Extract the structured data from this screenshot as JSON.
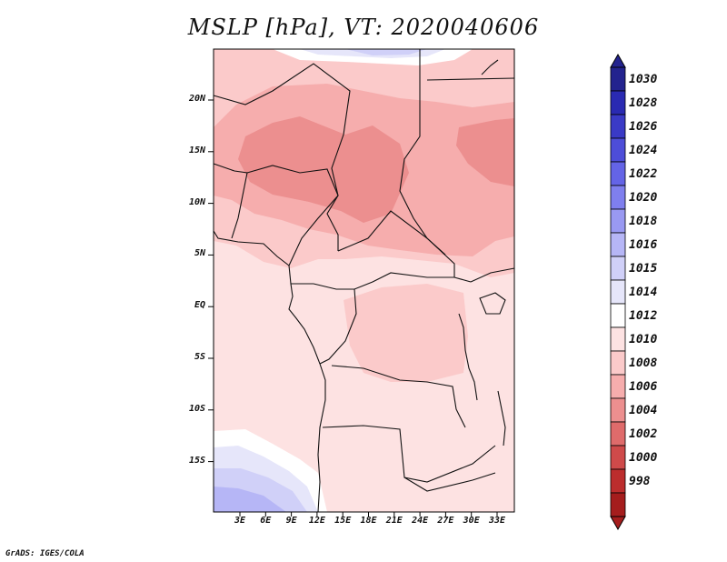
{
  "title": "MSLP [hPa], VT: 2020040606",
  "credit": "GrADS: IGES/COLA",
  "lat_labels": [
    "20N",
    "15N",
    "10N",
    "5N",
    "EQ",
    "5S",
    "10S",
    "15S"
  ],
  "lon_labels": [
    "3E",
    "6E",
    "9E",
    "12E",
    "15E",
    "18E",
    "21E",
    "24E",
    "27E",
    "30E",
    "33E"
  ],
  "colorbar": {
    "labels": [
      "1030",
      "1028",
      "1026",
      "1024",
      "1022",
      "1020",
      "1018",
      "1016",
      "1015",
      "1014",
      "1012",
      "1010",
      "1008",
      "1006",
      "1004",
      "1002",
      "1000",
      "998"
    ],
    "colors": [
      "#23238e",
      "#2a2ab2",
      "#3a3ac6",
      "#4d4dd8",
      "#6464e6",
      "#7f7fee",
      "#9999f2",
      "#b6b6f6",
      "#d0d0f8",
      "#e6e6fa",
      "#ffffff",
      "#fde2e2",
      "#fbcaca",
      "#f6adad",
      "#ec8f8f",
      "#df6b6b",
      "#cf4a4a",
      "#bc2d2d",
      "#a51d1d"
    ]
  },
  "legend_colors": {
    "lt1010": "#fbcaca",
    "lt1008": "#f6adad",
    "lt1006": "#ec8f8f",
    "band1012": "#fde2e2",
    "band1014": "#ffffff",
    "band1015": "#e6e6fa",
    "band1016": "#d0d0f8",
    "band1018": "#b6b6f6",
    "band1020": "#9999f2"
  }
}
